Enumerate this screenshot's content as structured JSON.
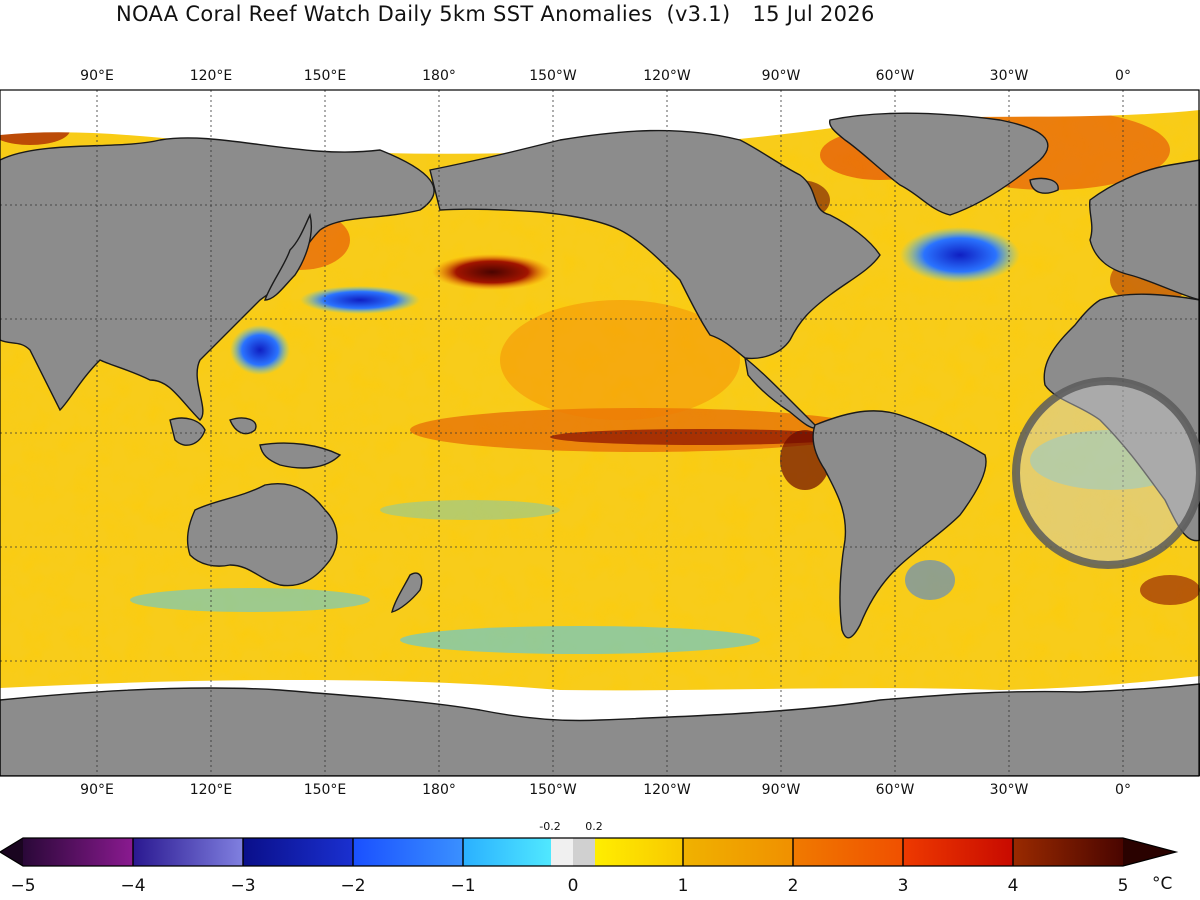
{
  "header": {
    "title": "NOAA Coral Reef Watch Daily 5km SST Anomalies  (v3.1)",
    "date": "15 Jul 2026"
  },
  "map": {
    "lon_labels": [
      "90°E",
      "120°E",
      "150°E",
      "180°",
      "150°W",
      "120°W",
      "90°W",
      "60°W",
      "30°W",
      "0°"
    ],
    "highlight": "gray-circle-marker"
  },
  "colorbar": {
    "ticks": [
      "−5",
      "−4",
      "−3",
      "−2",
      "−1",
      "0",
      "1",
      "2",
      "3",
      "4",
      "5"
    ],
    "inner_labels": [
      "-0.2",
      "0.2"
    ],
    "unit": "°C",
    "colors": [
      "#3d0a4f",
      "#7b0f86",
      "#3c3cb0",
      "#0f1fc2",
      "#2a73ff",
      "#43c8ff",
      "#ffe500",
      "#f5b400",
      "#f27a00",
      "#dc1e00",
      "#6e0a00"
    ]
  }
}
